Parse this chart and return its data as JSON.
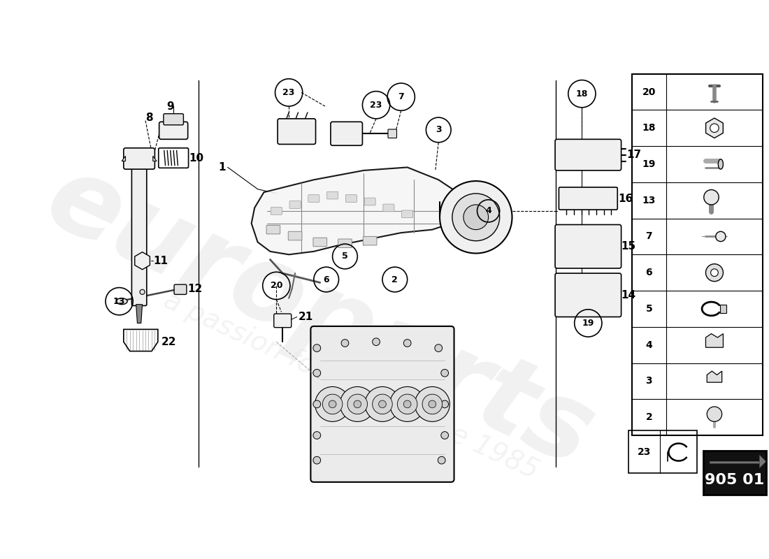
{
  "bg_color": "#ffffff",
  "lc": "#000000",
  "watermark_color": "#d0d0d0",
  "legend_numbers": [
    20,
    18,
    19,
    13,
    7,
    6,
    5,
    4,
    3,
    2
  ],
  "catalog_code": "905 01",
  "figsize": [
    11.0,
    8.0
  ],
  "dpi": 100,
  "xlim": [
    0,
    1100
  ],
  "ylim": [
    0,
    800
  ]
}
